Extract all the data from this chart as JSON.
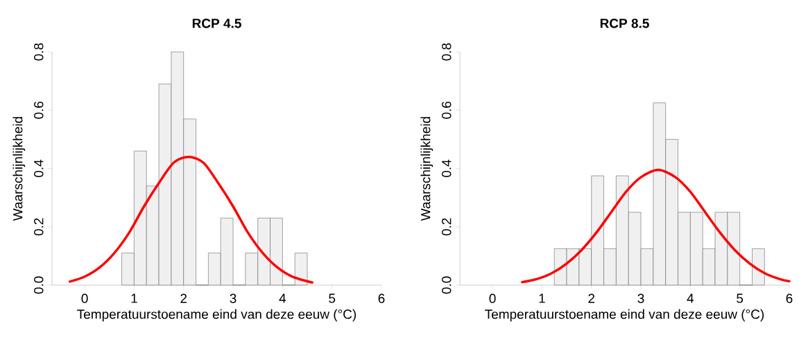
{
  "chart_data": [
    {
      "type": "histogram",
      "title": "RCP 4.5",
      "xlabel": "Temperatuurstoename eind van deze eeuw (°C)",
      "ylabel": "Waarschijnlijkheid",
      "bins": [
        0.75,
        1,
        1.25,
        1.5,
        1.75,
        2,
        2.25,
        2.5,
        2.75,
        3,
        3.25,
        3.5,
        3.75,
        4,
        4.25,
        4.5
      ],
      "values": [
        0.11,
        0.46,
        0.34,
        0.69,
        0.8,
        0.57,
        0,
        0.11,
        0.23,
        0,
        0.11,
        0.23,
        0.23,
        0,
        0.11
      ],
      "color": "#f0f0f0",
      "series": [
        {
          "type": "line",
          "color": "#ff0000",
          "x": [
            -0.3,
            0,
            0.3,
            0.6,
            0.9,
            1.2,
            1.5,
            1.8,
            2.1,
            2.4,
            2.7,
            3.0,
            3.3,
            3.6,
            3.9,
            4.2,
            4.6
          ],
          "values": [
            0.012,
            0.029,
            0.06,
            0.11,
            0.18,
            0.27,
            0.35,
            0.42,
            0.44,
            0.42,
            0.35,
            0.27,
            0.18,
            0.11,
            0.06,
            0.029,
            0.009
          ]
        }
      ],
      "xlim": [
        -0.66,
        6
      ],
      "xticks": [
        0,
        1,
        2,
        3,
        4,
        5,
        6
      ],
      "ylim": [
        0,
        0.8
      ],
      "yticks": [
        {
          "value": 0,
          "label": "0.0"
        },
        0.2,
        0.4,
        0.6,
        0.8
      ]
    },
    {
      "type": "histogram",
      "title": "RCP 8.5",
      "xlabel": "Temperatuurstoename eind van deze eeuw (°C)",
      "ylabel": "Waarschijnlijkheid",
      "bins": [
        1.25,
        1.5,
        1.75,
        2,
        2.25,
        2.5,
        2.75,
        3,
        3.25,
        3.5,
        3.75,
        4,
        4.25,
        4.5,
        4.75,
        5,
        5.25,
        5.5
      ],
      "values": [
        0.125,
        0.125,
        0.125,
        0.375,
        0.125,
        0.375,
        0.25,
        0.125,
        0.625,
        0.5,
        0.25,
        0.25,
        0.125,
        0.25,
        0.25,
        0,
        0.125
      ],
      "color": "#f0f0f0",
      "series": [
        {
          "type": "line",
          "color": "#ff0000",
          "x": [
            0.6,
            0.9,
            1.2,
            1.5,
            1.8,
            2.1,
            2.4,
            2.7,
            3.0,
            3.35,
            3.7,
            4.0,
            4.3,
            4.6,
            4.9,
            5.2,
            5.5,
            5.8,
            6.0
          ],
          "values": [
            0.01,
            0.021,
            0.041,
            0.074,
            0.12,
            0.18,
            0.25,
            0.32,
            0.37,
            0.395,
            0.37,
            0.32,
            0.25,
            0.18,
            0.12,
            0.074,
            0.041,
            0.021,
            0.013
          ]
        }
      ],
      "xlim": [
        -0.66,
        6
      ],
      "xticks": [
        0,
        1,
        2,
        3,
        4,
        5,
        6
      ],
      "ylim": [
        0,
        0.8
      ],
      "yticks": [
        {
          "value": 0,
          "label": "0.0"
        },
        0.2,
        0.4,
        0.6,
        0.8
      ]
    }
  ]
}
